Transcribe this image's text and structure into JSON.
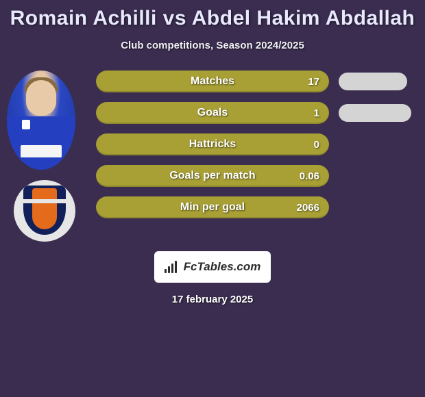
{
  "title": "Romain Achilli vs Abdel Hakim Abdallah",
  "subtitle": "Club competitions, Season 2024/2025",
  "colors": {
    "background": "#3a2d4f",
    "pill": "#a8a035",
    "sidePill": "#d4d4d4",
    "text": "#ffffff"
  },
  "stats": [
    {
      "label": "Matches",
      "value": "17",
      "side_width": 100
    },
    {
      "label": "Goals",
      "value": "1",
      "side_width": 110
    },
    {
      "label": "Hattricks",
      "value": "0",
      "side_width": 0
    },
    {
      "label": "Goals per match",
      "value": "0.06",
      "side_width": 0
    },
    {
      "label": "Min per goal",
      "value": "2066",
      "side_width": 0
    }
  ],
  "brand": "FcTables.com",
  "date": "17 february 2025"
}
